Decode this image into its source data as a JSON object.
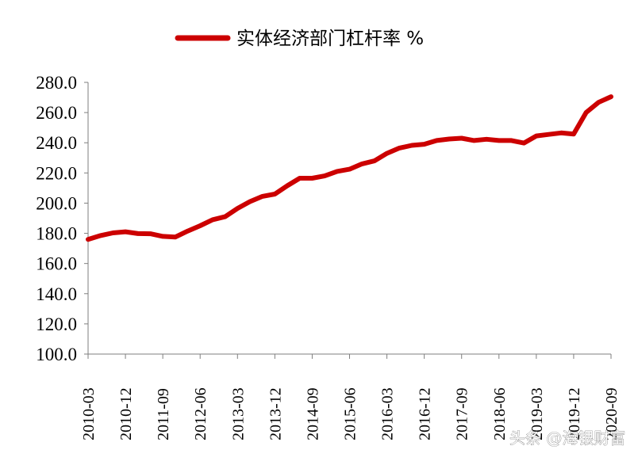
{
  "chart_data": {
    "type": "line",
    "title": "",
    "xlabel": "",
    "ylabel": "",
    "ylim": [
      100,
      280
    ],
    "yticks": [
      "280.0",
      "260.0",
      "240.0",
      "220.0",
      "200.0",
      "180.0",
      "160.0",
      "140.0",
      "120.0",
      "100.0"
    ],
    "ytick_values": [
      280,
      260,
      240,
      220,
      200,
      180,
      160,
      140,
      120,
      100
    ],
    "xticks": [
      "2010-03",
      "2010-12",
      "2011-09",
      "2012-06",
      "2013-03",
      "2013-12",
      "2014-09",
      "2015-06",
      "2016-03",
      "2016-12",
      "2017-09",
      "2018-06",
      "2019-03",
      "2019-12",
      "2020-09"
    ],
    "grid": false,
    "legend_position": "top-center",
    "series": [
      {
        "name": "实体经济部门杠杆率 %",
        "color": "#cc0000",
        "x": [
          "2010-03",
          "2010-06",
          "2010-09",
          "2010-12",
          "2011-03",
          "2011-06",
          "2011-09",
          "2011-12",
          "2012-03",
          "2012-06",
          "2012-09",
          "2012-12",
          "2013-03",
          "2013-06",
          "2013-09",
          "2013-12",
          "2014-03",
          "2014-06",
          "2014-09",
          "2014-12",
          "2015-03",
          "2015-06",
          "2015-09",
          "2015-12",
          "2016-03",
          "2016-06",
          "2016-09",
          "2016-12",
          "2017-03",
          "2017-06",
          "2017-09",
          "2017-12",
          "2018-03",
          "2018-06",
          "2018-09",
          "2018-12",
          "2019-03",
          "2019-06",
          "2019-09",
          "2019-12",
          "2020-03",
          "2020-06",
          "2020-09"
        ],
        "values": [
          176.0,
          178.5,
          180.3,
          181.0,
          179.8,
          179.7,
          178.0,
          177.5,
          181.5,
          185.0,
          189.0,
          191.0,
          196.5,
          201.0,
          204.5,
          206.0,
          211.5,
          216.5,
          216.5,
          218.0,
          221.0,
          222.5,
          226.0,
          228.0,
          233.0,
          236.5,
          238.3,
          239.0,
          241.5,
          242.5,
          243.0,
          241.5,
          242.3,
          241.5,
          241.5,
          239.8,
          244.5,
          245.5,
          246.5,
          245.8,
          260.0,
          266.8,
          270.5
        ]
      }
    ]
  },
  "watermark": {
    "text": "头条 @海银财富"
  }
}
